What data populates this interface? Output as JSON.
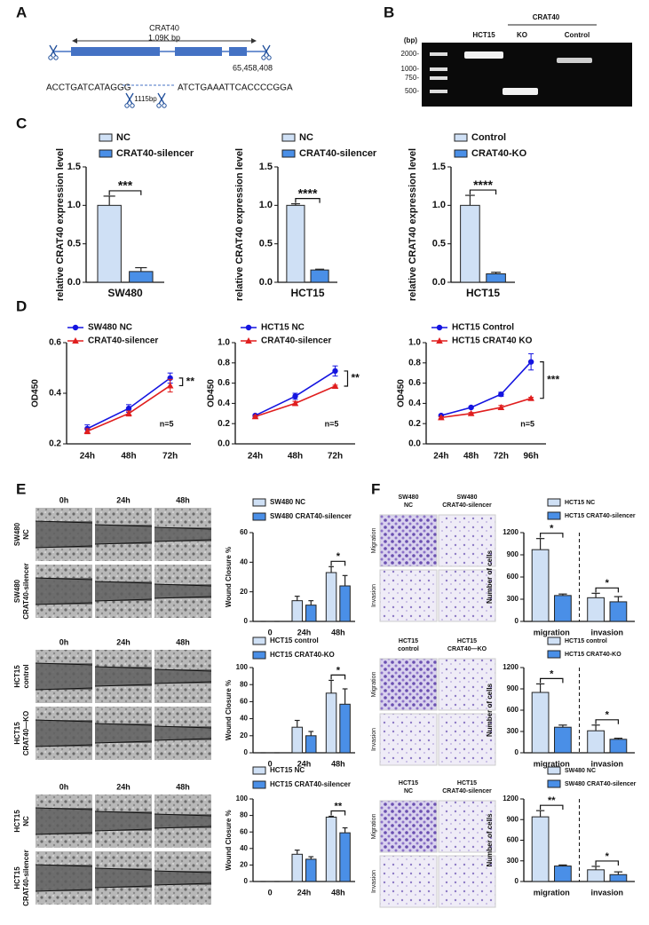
{
  "panel_labels": [
    "A",
    "B",
    "C",
    "D",
    "E",
    "F"
  ],
  "diagram_a": {
    "gene": "CRAT40",
    "length": "1.09K  bp",
    "coordinate": "65,458,408",
    "left_seq": "ACCTGATCATAGGG",
    "right_seq": "ATCTGAAATTCACCCCGGA",
    "deletion": "1115bp"
  },
  "gel_b": {
    "unit": "(bp)",
    "markers": [
      "2000-",
      "1000-",
      "750-",
      "500-"
    ],
    "group": "CRAT40",
    "lanes": [
      "HCT15",
      "KO",
      "Control"
    ]
  },
  "wound_images": [
    {
      "timepoints": [
        "0h",
        "24h",
        "48h"
      ],
      "rows": [
        [
          "SW480",
          "NC"
        ],
        [
          "SW480",
          "CRAT40-silencer"
        ]
      ]
    },
    {
      "timepoints": [
        "0h",
        "24h",
        "48h"
      ],
      "rows": [
        [
          "HCT15",
          "control"
        ],
        [
          "HCT15",
          "CRAT40—KO"
        ]
      ]
    },
    {
      "timepoints": [
        "0h",
        "24h",
        "48h"
      ],
      "rows": [
        [
          "HCT15",
          "NC"
        ],
        [
          "HCT15",
          "CRAT40-silencer"
        ]
      ]
    }
  ],
  "transwell_images": [
    {
      "columns": [
        [
          "SW480",
          "NC"
        ],
        [
          "SW480",
          "CRAT40-silencer"
        ]
      ],
      "rows": [
        "Migration",
        "Invasion"
      ]
    },
    {
      "columns": [
        [
          "HCT15",
          "control"
        ],
        [
          "HCT15",
          "CRAT40—KO"
        ]
      ],
      "rows": [
        "Migration",
        "Invasion"
      ]
    },
    {
      "columns": [
        [
          "HCT15",
          "NC"
        ],
        [
          "HCT15",
          "CRAT40-silencer"
        ]
      ],
      "rows": [
        "Migration",
        "Invasion"
      ]
    }
  ],
  "chart_data": [
    {
      "type": "bar",
      "ylabel": "relative CRAT40 expression level",
      "categories": [
        "SW480"
      ],
      "ylim": [
        0,
        1.5
      ],
      "yticks": [
        {
          "value": 0,
          "label": "0.0"
        },
        0.5,
        {
          "value": 1,
          "label": "1.0"
        },
        1.5
      ],
      "annotations": [
        "***"
      ],
      "series": [
        {
          "name": "NC",
          "color": "#cfe0f5",
          "values": [
            1.0
          ],
          "errors": [
            0.12
          ]
        },
        {
          "name": "CRAT40-silencer",
          "color": "#4a8fe7",
          "values": [
            0.14
          ],
          "errors": [
            0.05
          ]
        }
      ]
    },
    {
      "type": "bar",
      "ylabel": "relative CRAT40 expression level",
      "categories": [
        "HCT15"
      ],
      "ylim": [
        0,
        1.5
      ],
      "yticks": [
        {
          "value": 0,
          "label": "0.0"
        },
        0.5,
        {
          "value": 1,
          "label": "1.0"
        },
        1.5
      ],
      "annotations": [
        "****"
      ],
      "series": [
        {
          "name": "NC",
          "color": "#cfe0f5",
          "values": [
            1.0
          ],
          "errors": [
            0.02
          ]
        },
        {
          "name": "CRAT40-silencer",
          "color": "#4a8fe7",
          "values": [
            0.16
          ],
          "errors": [
            0.01
          ]
        }
      ]
    },
    {
      "type": "bar",
      "ylabel": "relative CRAT40 expression level",
      "categories": [
        "HCT15"
      ],
      "ylim": [
        0,
        1.5
      ],
      "yticks": [
        {
          "value": 0,
          "label": "0.0"
        },
        0.5,
        {
          "value": 1,
          "label": "1.0"
        },
        1.5
      ],
      "annotations": [
        "****"
      ],
      "series": [
        {
          "name": "Control",
          "color": "#cfe0f5",
          "values": [
            1.0
          ],
          "errors": [
            0.13
          ]
        },
        {
          "name": "CRAT40-KO",
          "color": "#4a8fe7",
          "values": [
            0.11
          ],
          "errors": [
            0.02
          ]
        }
      ]
    },
    {
      "type": "line",
      "ylabel": "OD450",
      "categories": [
        "24h",
        "48h",
        "72h"
      ],
      "ylim": [
        0.2,
        0.6
      ],
      "yticks": [
        0.2,
        0.4,
        0.6
      ],
      "significance": "**",
      "note": "n=5",
      "series": [
        {
          "name": "SW480 NC",
          "color": "#1414e0",
          "marker": "circle",
          "values": [
            0.26,
            0.34,
            0.46
          ],
          "errors": [
            0.015,
            0.015,
            0.02
          ]
        },
        {
          "name": "CRAT40-silencer",
          "color": "#e01e1e",
          "marker": "triangle",
          "values": [
            0.25,
            0.32,
            0.43
          ],
          "errors": [
            0.01,
            0.01,
            0.025
          ]
        }
      ]
    },
    {
      "type": "line",
      "ylabel": "OD450",
      "categories": [
        "24h",
        "48h",
        "72h"
      ],
      "ylim": [
        0,
        1.0
      ],
      "yticks": [
        {
          "value": 0,
          "label": "0.0"
        },
        0.2,
        0.4,
        0.6,
        0.8,
        {
          "value": 1,
          "label": "1.0"
        }
      ],
      "significance": "**",
      "note": "n=5",
      "series": [
        {
          "name": "HCT15 NC",
          "color": "#1414e0",
          "marker": "circle",
          "values": [
            0.28,
            0.47,
            0.72
          ],
          "errors": [
            0.01,
            0.03,
            0.05
          ]
        },
        {
          "name": "CRAT40-silencer",
          "color": "#e01e1e",
          "marker": "triangle",
          "values": [
            0.27,
            0.4,
            0.57
          ],
          "errors": [
            0.01,
            0.02,
            0.01
          ]
        }
      ]
    },
    {
      "type": "line",
      "ylabel": "OD450",
      "categories": [
        "24h",
        "48h",
        "72h",
        "96h"
      ],
      "ylim": [
        0,
        1.0
      ],
      "yticks": [
        {
          "value": 0,
          "label": "0.0"
        },
        0.2,
        0.4,
        0.6,
        0.8,
        {
          "value": 1,
          "label": "1.0"
        }
      ],
      "significance": "***",
      "note": "n=5",
      "series": [
        {
          "name": "HCT15 Control",
          "color": "#1414e0",
          "marker": "circle",
          "values": [
            0.28,
            0.36,
            0.49,
            0.81
          ],
          "errors": [
            0.01,
            0.01,
            0.02,
            0.08
          ]
        },
        {
          "name": "HCT15 CRAT40 KO",
          "color": "#e01e1e",
          "marker": "triangle",
          "values": [
            0.26,
            0.3,
            0.36,
            0.45
          ],
          "errors": [
            0.01,
            0.01,
            0.02,
            0.01
          ]
        }
      ]
    },
    {
      "type": "bar",
      "ylabel": "Wound Closure %",
      "categories": [
        "0",
        "24h",
        "48h"
      ],
      "ylim": [
        0,
        60
      ],
      "yticks": [
        0,
        20,
        40,
        60
      ],
      "annotations": [
        null,
        null,
        "*"
      ],
      "series": [
        {
          "name": "SW480 NC",
          "color": "#cfe0f5",
          "values": [
            0,
            14,
            33
          ],
          "errors": [
            0,
            3,
            4
          ]
        },
        {
          "name": "SW480 CRAT40-silencer",
          "color": "#4a8fe7",
          "values": [
            0,
            11,
            24
          ],
          "errors": [
            0,
            3,
            7
          ]
        }
      ]
    },
    {
      "type": "bar",
      "ylabel": "Wound Closure %",
      "categories": [
        "0",
        "24h",
        "48h"
      ],
      "ylim": [
        0,
        100
      ],
      "yticks": [
        0,
        20,
        40,
        60,
        80,
        100
      ],
      "annotations": [
        null,
        null,
        "*"
      ],
      "series": [
        {
          "name": "HCT15 control",
          "color": "#cfe0f5",
          "values": [
            0,
            30,
            70
          ],
          "errors": [
            0,
            8,
            15
          ]
        },
        {
          "name": "HCT15 CRAT40-KO",
          "color": "#4a8fe7",
          "values": [
            0,
            20,
            57
          ],
          "errors": [
            0,
            5,
            18
          ]
        }
      ]
    },
    {
      "type": "bar",
      "ylabel": "Wound Closure %",
      "categories": [
        "0",
        "24h",
        "48h"
      ],
      "ylim": [
        0,
        100
      ],
      "yticks": [
        0,
        20,
        40,
        60,
        80,
        100
      ],
      "annotations": [
        null,
        null,
        "**"
      ],
      "series": [
        {
          "name": "HCT15 NC",
          "color": "#cfe0f5",
          "values": [
            0,
            33,
            78
          ],
          "errors": [
            0,
            5,
            1
          ]
        },
        {
          "name": "HCT15 CRAT40-silencer",
          "color": "#4a8fe7",
          "values": [
            0,
            27,
            59
          ],
          "errors": [
            0,
            3,
            6
          ]
        }
      ]
    },
    {
      "type": "bar",
      "ylabel": "Number of cells",
      "categories": [
        "migration",
        "invasion"
      ],
      "ylim": [
        0,
        1200
      ],
      "yticks": [
        0,
        300,
        600,
        900,
        1200
      ],
      "annotations": [
        "*",
        "*"
      ],
      "separator": true,
      "series": [
        {
          "name": "HCT15 NC",
          "color": "#cfe0f5",
          "values": [
            970,
            320
          ],
          "errors": [
            150,
            60
          ]
        },
        {
          "name": "HCT15 CRAT40-silencer",
          "color": "#4a8fe7",
          "values": [
            350,
            265
          ],
          "errors": [
            20,
            70
          ]
        }
      ]
    },
    {
      "type": "bar",
      "ylabel": "Number of cells",
      "categories": [
        "migration",
        "invasion"
      ],
      "ylim": [
        0,
        1200
      ],
      "yticks": [
        0,
        300,
        600,
        900,
        1200
      ],
      "annotations": [
        "*",
        "*"
      ],
      "separator": true,
      "series": [
        {
          "name": "HCT15 control",
          "color": "#cfe0f5",
          "values": [
            850,
            310
          ],
          "errors": [
            120,
            80
          ]
        },
        {
          "name": "HCT15 CRAT40-KO",
          "color": "#4a8fe7",
          "values": [
            360,
            190
          ],
          "errors": [
            30,
            15
          ]
        }
      ]
    },
    {
      "type": "bar",
      "ylabel": "Number of cells",
      "categories": [
        "migration",
        "invasion"
      ],
      "ylim": [
        0,
        1200
      ],
      "yticks": [
        0,
        300,
        600,
        900,
        1200
      ],
      "annotations": [
        "**",
        "*"
      ],
      "separator": true,
      "series": [
        {
          "name": "SW480 NC",
          "color": "#cfe0f5",
          "values": [
            940,
            170
          ],
          "errors": [
            90,
            50
          ]
        },
        {
          "name": "SW480 CRAT40-silencer",
          "color": "#4a8fe7",
          "values": [
            225,
            100
          ],
          "errors": [
            15,
            40
          ]
        }
      ]
    }
  ]
}
